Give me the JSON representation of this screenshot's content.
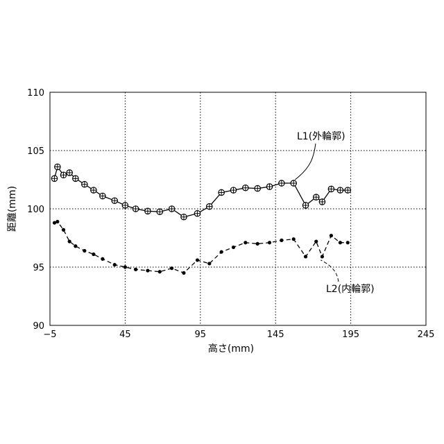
{
  "chart_data": {
    "type": "line",
    "xlabel": "高さ(mm)",
    "ylabel": "距離(mm)",
    "xlim": [
      -5,
      245
    ],
    "ylim": [
      90,
      110
    ],
    "xticks": [
      -5,
      45,
      95,
      145,
      195,
      245
    ],
    "yticks": [
      90,
      95,
      100,
      105,
      110
    ],
    "xtick_labels": [
      "−5",
      "45",
      "95",
      "145",
      "195",
      "245"
    ],
    "ytick_labels": [
      "90",
      "95",
      "100",
      "105",
      "110"
    ],
    "grid": true,
    "series": [
      {
        "name": "L1(外輪郭)",
        "marker": "circle-cross",
        "line": "solid",
        "x": [
          -2,
          0,
          4,
          8,
          12,
          18,
          24,
          30,
          38,
          45,
          52,
          60,
          68,
          76,
          84,
          93,
          101,
          109,
          117,
          125,
          133,
          141,
          149,
          157,
          165,
          172,
          176,
          182,
          188,
          193
        ],
        "y": [
          102.6,
          103.6,
          102.9,
          103.1,
          102.6,
          102.1,
          101.6,
          101.1,
          100.7,
          100.3,
          100.0,
          99.8,
          99.75,
          100.0,
          99.3,
          99.6,
          100.2,
          101.4,
          101.6,
          101.8,
          101.75,
          101.9,
          102.2,
          102.2,
          100.3,
          101.0,
          100.6,
          101.7,
          101.6,
          101.6
        ]
      },
      {
        "name": "L2(内輪郭)",
        "marker": "dot",
        "line": "dashed",
        "x": [
          -2,
          0,
          4,
          8,
          12,
          18,
          24,
          30,
          38,
          45,
          52,
          60,
          68,
          76,
          84,
          93,
          101,
          109,
          117,
          125,
          133,
          141,
          149,
          157,
          165,
          172,
          176,
          182,
          188,
          193
        ],
        "y": [
          98.8,
          98.9,
          98.2,
          97.2,
          96.8,
          96.4,
          96.1,
          95.7,
          95.2,
          95.0,
          94.8,
          94.7,
          94.6,
          94.9,
          94.5,
          95.6,
          95.3,
          96.3,
          96.7,
          97.1,
          97.0,
          97.1,
          97.3,
          97.4,
          95.9,
          97.2,
          95.9,
          97.7,
          97.1,
          97.1
        ]
      }
    ],
    "annotations": [
      {
        "text": "L1(外輪郭)",
        "series": 0
      },
      {
        "text": "L2(内輪郭)",
        "series": 1
      }
    ]
  }
}
